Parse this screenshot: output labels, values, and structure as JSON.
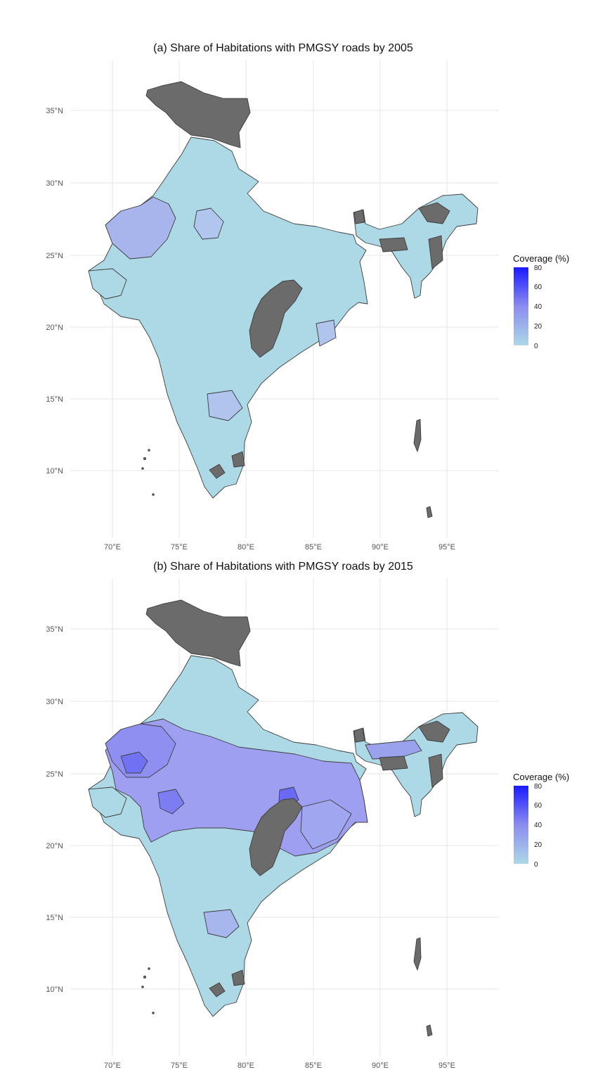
{
  "panels": [
    {
      "title": "(a) Share of Habitations with PMGSY roads by 2005",
      "lat_ticks": [
        "35°N",
        "30°N",
        "25°N",
        "20°N",
        "15°N",
        "10°N"
      ],
      "lon_ticks": [
        "70°E",
        "75°E",
        "80°E",
        "85°E",
        "90°E",
        "95°E"
      ],
      "legend": {
        "title": "Coverage (%)",
        "ticks": [
          "80",
          "60",
          "40",
          "20",
          "0"
        ]
      }
    },
    {
      "title": "(b) Share of Habitations with PMGSY roads by 2015",
      "lat_ticks": [
        "35°N",
        "30°N",
        "25°N",
        "20°N",
        "15°N",
        "10°N"
      ],
      "lon_ticks": [
        "70°E",
        "75°E",
        "80°E",
        "85°E",
        "90°E",
        "95°E"
      ],
      "legend": {
        "title": "Coverage (%)",
        "ticks": [
          "80",
          "60",
          "40",
          "20",
          "0"
        ]
      }
    }
  ],
  "colors": {
    "low": "#add8e6",
    "high": "#1a1aff",
    "missing": "#6b6b6b",
    "border": "#3d3d3d",
    "grid": "#e6e6e6"
  },
  "chart_data": [
    {
      "type": "choropleth",
      "title": "(a) Share of Habitations with PMGSY roads by 2005",
      "xlim": [
        67,
        98
      ],
      "ylim": [
        7,
        37
      ],
      "x_ticks": [
        70,
        75,
        80,
        85,
        90,
        95
      ],
      "y_ticks": [
        35,
        30,
        25,
        20,
        15,
        10
      ],
      "legend": {
        "title": "Coverage (%)",
        "range": [
          0,
          80
        ],
        "ticks": [
          0,
          20,
          40,
          60,
          80
        ],
        "placement": "right"
      },
      "grid": true
    },
    {
      "type": "choropleth",
      "title": "(b) Share of Habitations with PMGSY roads by 2015",
      "xlim": [
        67,
        98
      ],
      "ylim": [
        7,
        37
      ],
      "x_ticks": [
        70,
        75,
        80,
        85,
        90,
        95
      ],
      "y_ticks": [
        35,
        30,
        25,
        20,
        15,
        10
      ],
      "legend": {
        "title": "Coverage (%)",
        "range": [
          0,
          80
        ],
        "ticks": [
          0,
          20,
          40,
          60,
          80
        ],
        "placement": "right"
      },
      "grid": true
    }
  ]
}
